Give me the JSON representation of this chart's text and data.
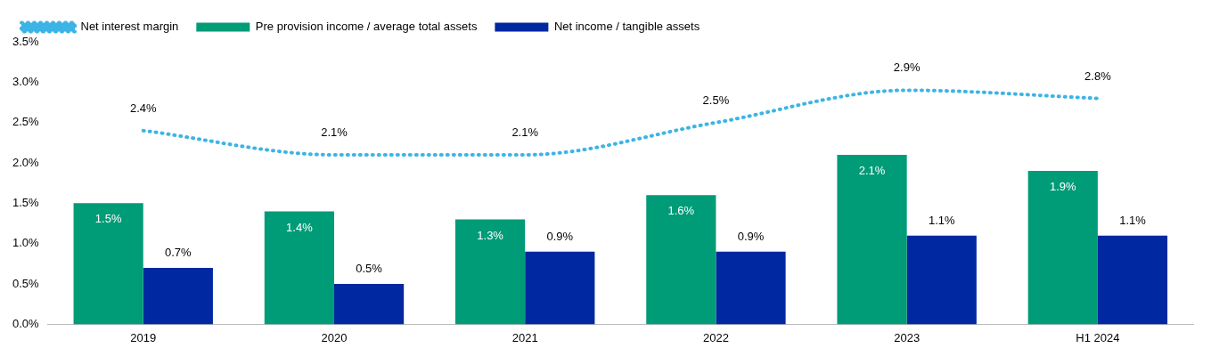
{
  "chart_data": {
    "type": "bar",
    "categories": [
      "2019",
      "2020",
      "2021",
      "2022",
      "2023",
      "H1 2024"
    ],
    "series": [
      {
        "name": "Pre provision income / average total assets",
        "color": "#009b77",
        "values": [
          1.5,
          1.4,
          1.3,
          1.6,
          2.1,
          1.9
        ],
        "value_labels": [
          "1.5%",
          "1.4%",
          "1.3%",
          "1.6%",
          "2.1%",
          "1.9%"
        ]
      },
      {
        "name": "Net income / tangible assets",
        "color": "#0028a0",
        "values": [
          0.7,
          0.5,
          0.9,
          0.9,
          1.1,
          1.1
        ],
        "value_labels": [
          "0.7%",
          "0.5%",
          "0.9%",
          "0.9%",
          "1.1%",
          "1.1%"
        ]
      },
      {
        "name": "Net interest margin",
        "type": "line",
        "color": "#3cb4e5",
        "values": [
          2.4,
          2.1,
          2.1,
          2.5,
          2.9,
          2.8
        ],
        "value_labels": [
          "2.4%",
          "2.1%",
          "2.1%",
          "2.5%",
          "2.9%",
          "2.8%"
        ]
      }
    ],
    "ylim": [
      0,
      3.5
    ],
    "yticks": [
      {
        "value": 0,
        "label": "0.0%"
      },
      {
        "value": 0.5,
        "label": "0.5%"
      },
      {
        "value": 1,
        "label": "1.0%"
      },
      {
        "value": 1.5,
        "label": "1.5%"
      },
      {
        "value": 2,
        "label": "2.0%"
      },
      {
        "value": 2.5,
        "label": "2.5%"
      },
      {
        "value": 3,
        "label": "3.0%"
      },
      {
        "value": 3.5,
        "label": "3.5%"
      }
    ],
    "grid": false,
    "legend": "top left",
    "marker": "none",
    "line_style": "dotted"
  }
}
